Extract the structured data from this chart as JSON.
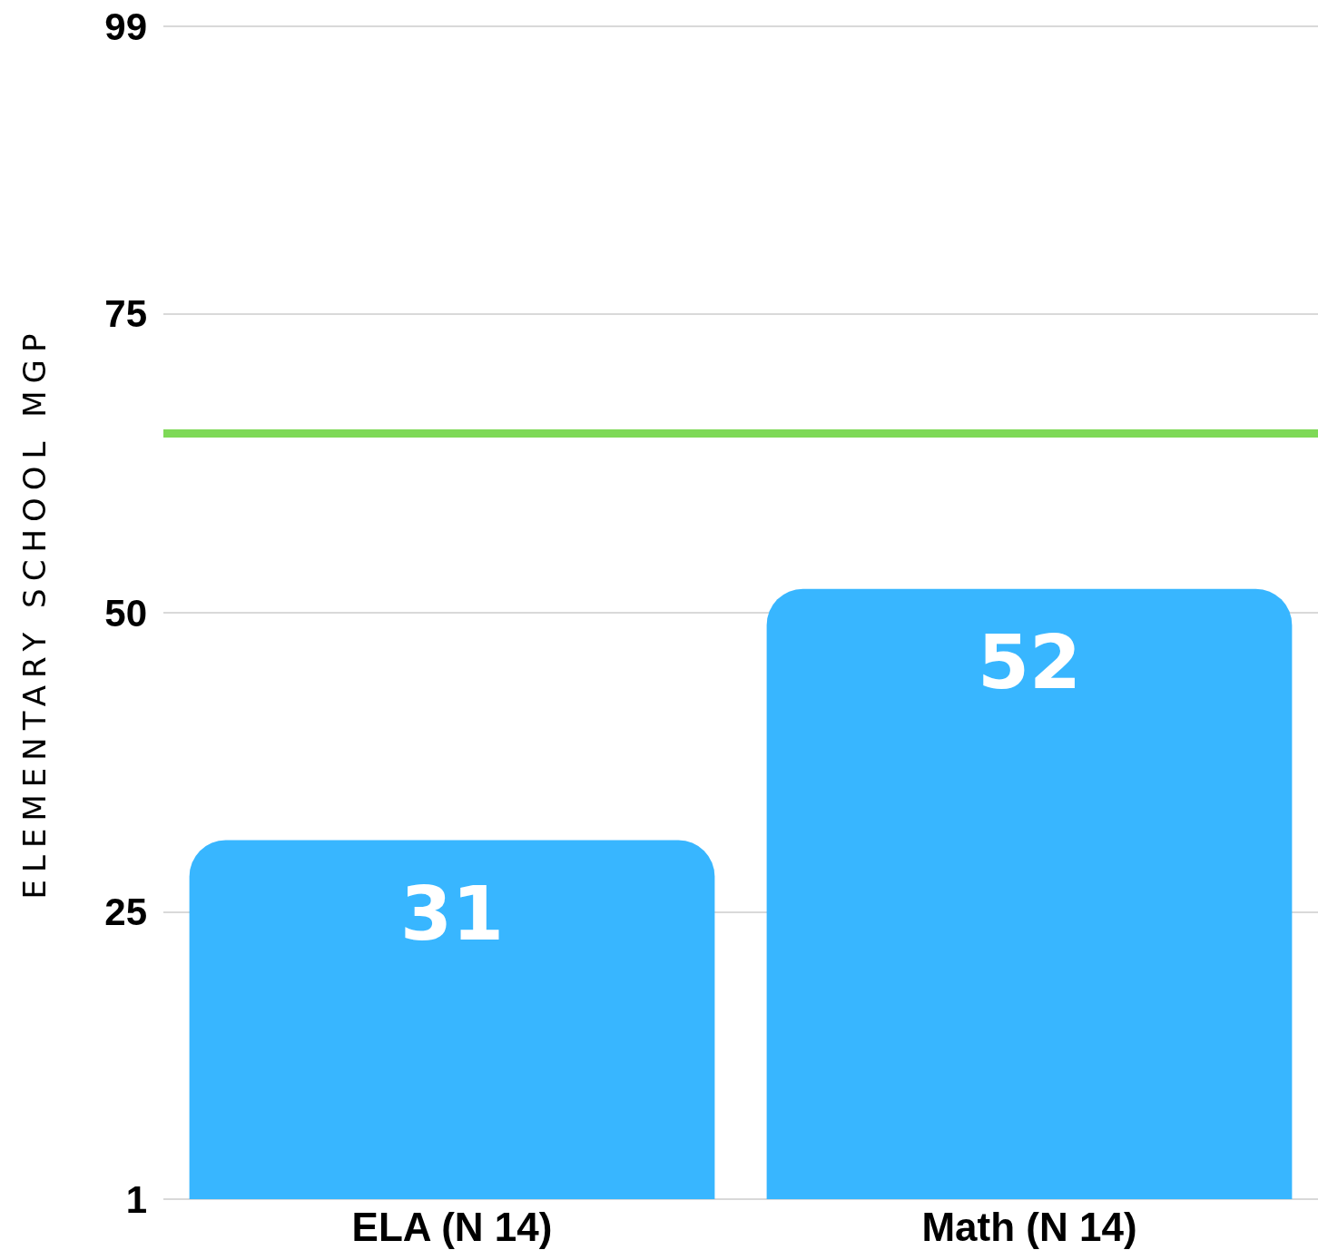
{
  "chart_data": {
    "type": "bar",
    "ylabel": "ELEMENTARY SCHOOL MGP",
    "categories": [
      "ELA (N 14)",
      "Math (N 14)"
    ],
    "values": [
      31,
      52
    ],
    "color": "#38b6ff",
    "data_labels": true,
    "ylim": [
      1,
      99
    ],
    "yticks": [
      1,
      25,
      50,
      75,
      99
    ],
    "grid": "y",
    "ref_lines": [
      {
        "axis": "y",
        "value": 65,
        "color": "#7ed957"
      }
    ]
  }
}
